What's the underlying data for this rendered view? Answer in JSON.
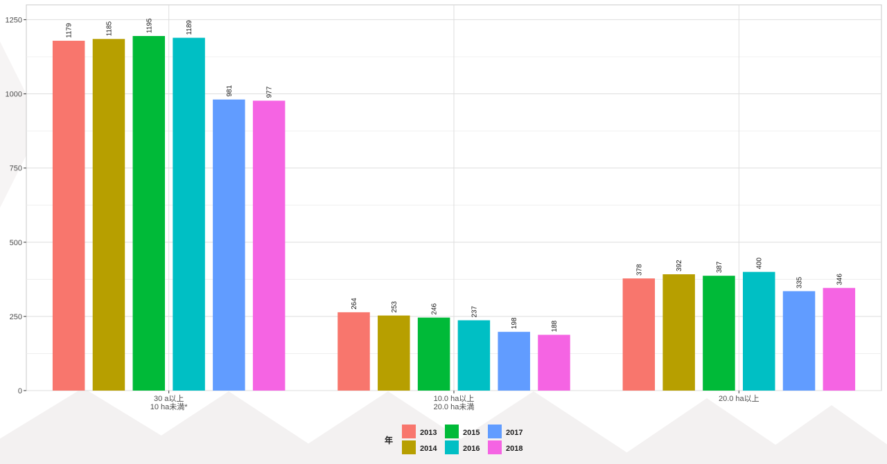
{
  "chart_data": {
    "type": "bar",
    "categories": [
      [
        "30 a以上",
        "10 ha未満*"
      ],
      [
        "10.0 ha以上",
        "20.0 ha未満"
      ],
      [
        "20.0 ha以上"
      ]
    ],
    "series": [
      {
        "name": "2013",
        "values": [
          1179,
          264,
          378
        ],
        "color": "#F8766D"
      },
      {
        "name": "2014",
        "values": [
          1185,
          253,
          392
        ],
        "color": "#B79F00"
      },
      {
        "name": "2015",
        "values": [
          1195,
          246,
          387
        ],
        "color": "#00BA38"
      },
      {
        "name": "2016",
        "values": [
          1189,
          237,
          400
        ],
        "color": "#00BFC4"
      },
      {
        "name": "2017",
        "values": [
          981,
          198,
          335
        ],
        "color": "#619CFF"
      },
      {
        "name": "2018",
        "values": [
          977,
          188,
          346
        ],
        "color": "#F564E3"
      }
    ],
    "ylim": [
      0,
      1300
    ],
    "yticks": [
      0,
      250,
      500,
      750,
      1000,
      1250
    ],
    "grid": true,
    "legend": {
      "title": "年",
      "position": "bottom",
      "ncol": 3
    },
    "title": "",
    "xlabel": "",
    "ylabel": ""
  }
}
